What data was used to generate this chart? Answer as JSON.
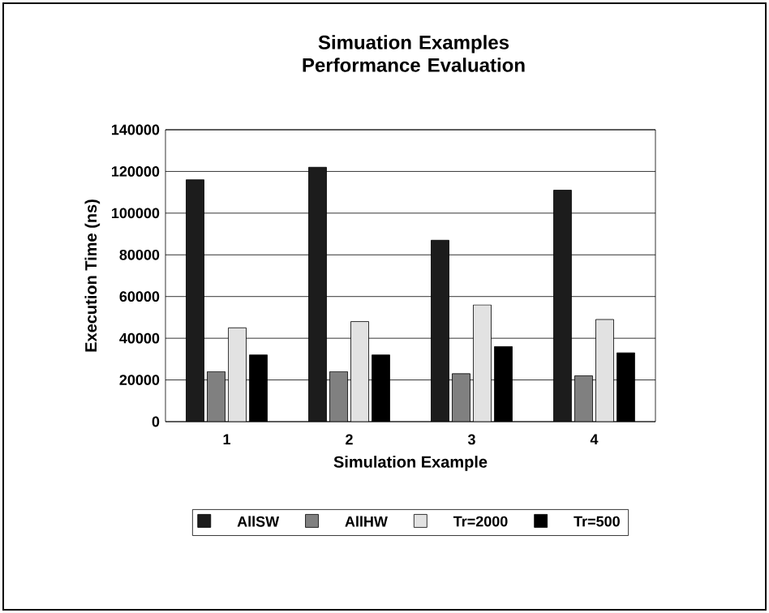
{
  "chart_data": {
    "type": "bar",
    "title": "Simuation Examples Performance Evaluation",
    "xlabel": "Simulation Example",
    "ylabel": "Execution Time (ns)",
    "categories": [
      "1",
      "2",
      "3",
      "4"
    ],
    "series": [
      {
        "name": "AllSW",
        "color": "#1c1c1c",
        "values": [
          116000,
          122000,
          87000,
          111000
        ]
      },
      {
        "name": "AllHW",
        "color": "#808080",
        "values": [
          24000,
          24000,
          23000,
          22000
        ]
      },
      {
        "name": "Tr=2000",
        "color": "#e2e2e2",
        "values": [
          45000,
          48000,
          56000,
          49000
        ]
      },
      {
        "name": "Tr=500",
        "color": "#000000",
        "values": [
          32000,
          32000,
          36000,
          33000
        ]
      }
    ],
    "ylim": [
      0,
      140000
    ],
    "yticks": [
      0,
      20000,
      40000,
      60000,
      80000,
      100000,
      120000,
      140000
    ],
    "grid": "y",
    "legend": "bottom"
  }
}
